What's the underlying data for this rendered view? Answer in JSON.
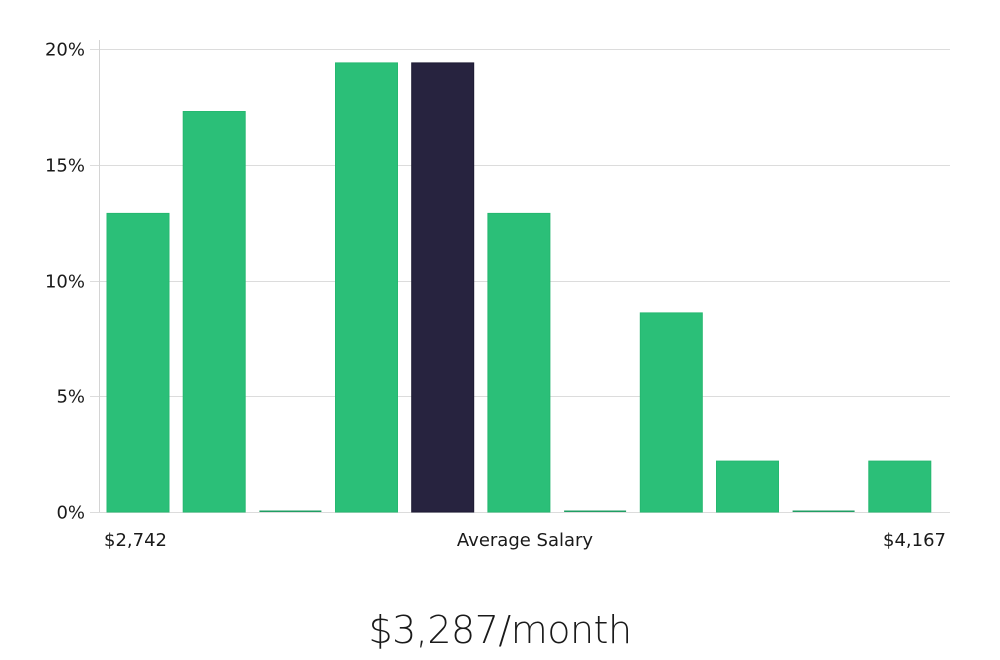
{
  "chart_data": {
    "type": "bar",
    "title": "",
    "xlabel": "Average Salary",
    "ylabel": "",
    "x_range_labels": {
      "min": "$2,742",
      "max": "$4,167"
    },
    "categories": [
      "bin1",
      "bin2",
      "bin3",
      "bin4",
      "bin5",
      "bin6",
      "bin7",
      "bin8",
      "bin9",
      "bin10",
      "bin11"
    ],
    "values": [
      12.9,
      17.3,
      0,
      19.4,
      19.4,
      12.9,
      0,
      8.6,
      2.2,
      0,
      2.2
    ],
    "highlight_index": 4,
    "ylim": [
      0,
      20
    ],
    "yticks": [
      0,
      5,
      10,
      15,
      20
    ],
    "ytick_labels": [
      "0%",
      "5%",
      "10%",
      "15%",
      "20%"
    ],
    "grid": true,
    "legend": null,
    "colors": {
      "bar": "#2bbf78",
      "highlight": "#27233f",
      "grid": "#dcdcdc",
      "axis": "#cccccc"
    }
  },
  "labels": {
    "x_min": "$2,742",
    "x_center": "Average Salary",
    "x_max": "$4,167"
  },
  "headline": "$3,287/month"
}
